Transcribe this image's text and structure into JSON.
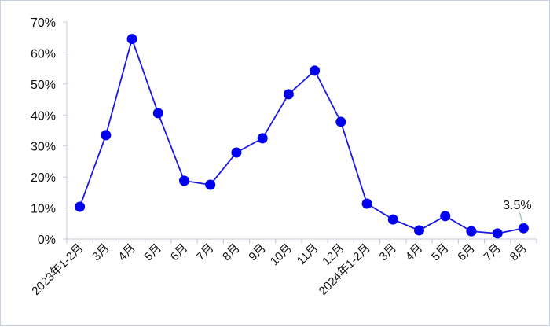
{
  "chart_data": {
    "type": "line",
    "title": "",
    "xlabel": "",
    "ylabel": "",
    "categories": [
      "2023年1-2月",
      "3月",
      "4月",
      "5月",
      "6月",
      "7月",
      "8月",
      "9月",
      "10月",
      "11月",
      "12月",
      "2024年1-2月",
      "3月",
      "4月",
      "5月",
      "6月",
      "7月",
      "8月"
    ],
    "values": [
      10.4,
      33.5,
      64.5,
      40.6,
      18.8,
      17.5,
      27.9,
      32.5,
      46.7,
      54.3,
      37.8,
      11.4,
      6.3,
      2.8,
      7.4,
      2.5,
      1.8,
      3.5
    ],
    "ylim": [
      0,
      70
    ],
    "yticks": [
      "0%",
      "10%",
      "20%",
      "30%",
      "40%",
      "50%",
      "60%",
      "70%"
    ],
    "grid": false,
    "legend": "none",
    "annotation": {
      "index": 17,
      "text": "3.5%"
    },
    "colors": {
      "line": "#1a1adf",
      "marker": "#0000ee",
      "axis": "#c0c8d8"
    }
  }
}
